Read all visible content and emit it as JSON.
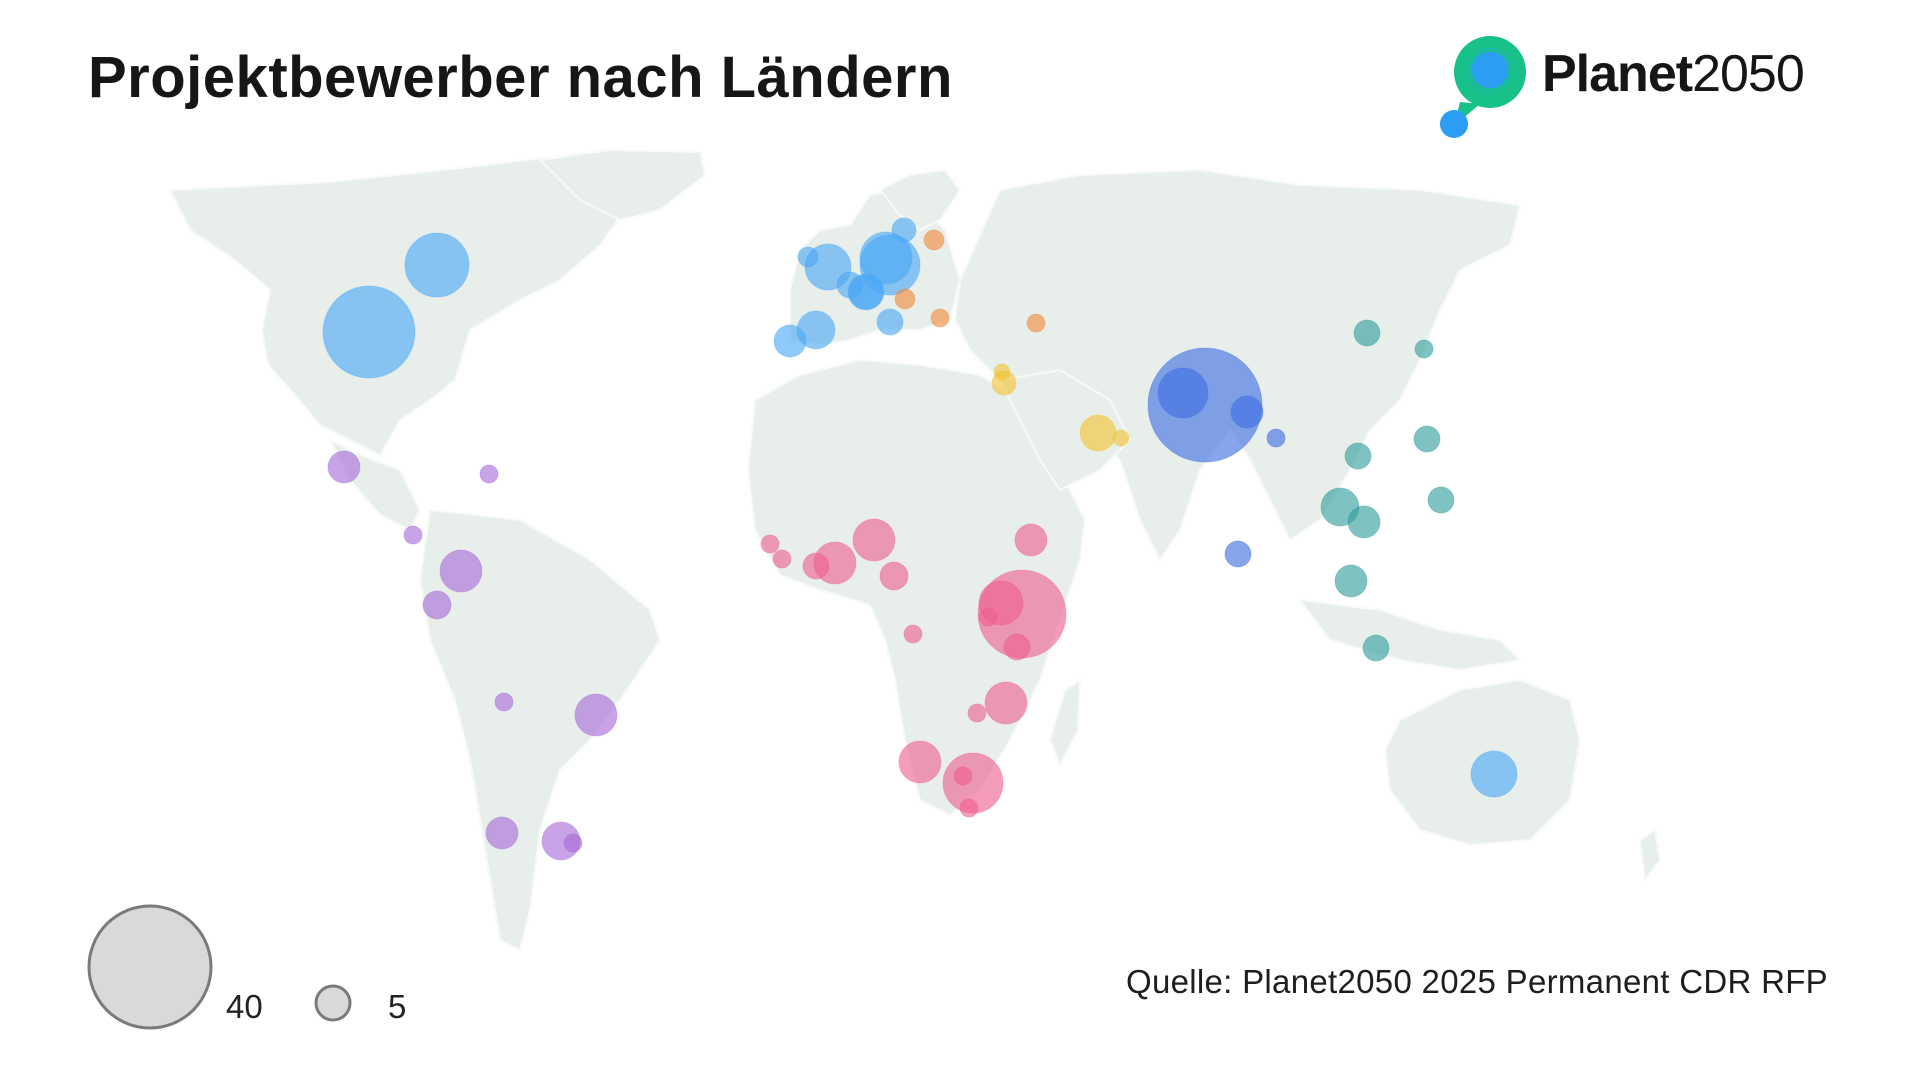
{
  "title": "Projektbewerber nach Ländern",
  "logo": {
    "brand_bold": "Planet",
    "brand_light": "2050",
    "icon": "location-pin-icon",
    "colors": {
      "ring": "#19c18a",
      "dot": "#2b9ef4"
    }
  },
  "source": "Quelle: Planet2050 2025 Permanent CDR RFP",
  "legend": {
    "items": [
      {
        "label": "40",
        "value": 40
      },
      {
        "label": "5",
        "value": 5
      }
    ]
  },
  "colors": {
    "land": "#e8efea",
    "north_america_europe_oceania": "#4aa8f5",
    "latin_america": "#a66ad9",
    "africa": "#ee5f90",
    "middle_east": "#f2c233",
    "eastern_europe": "#f0893c",
    "south_asia": "#3d6ee2",
    "east_southeast_asia": "#2f9c9c"
  }
}
